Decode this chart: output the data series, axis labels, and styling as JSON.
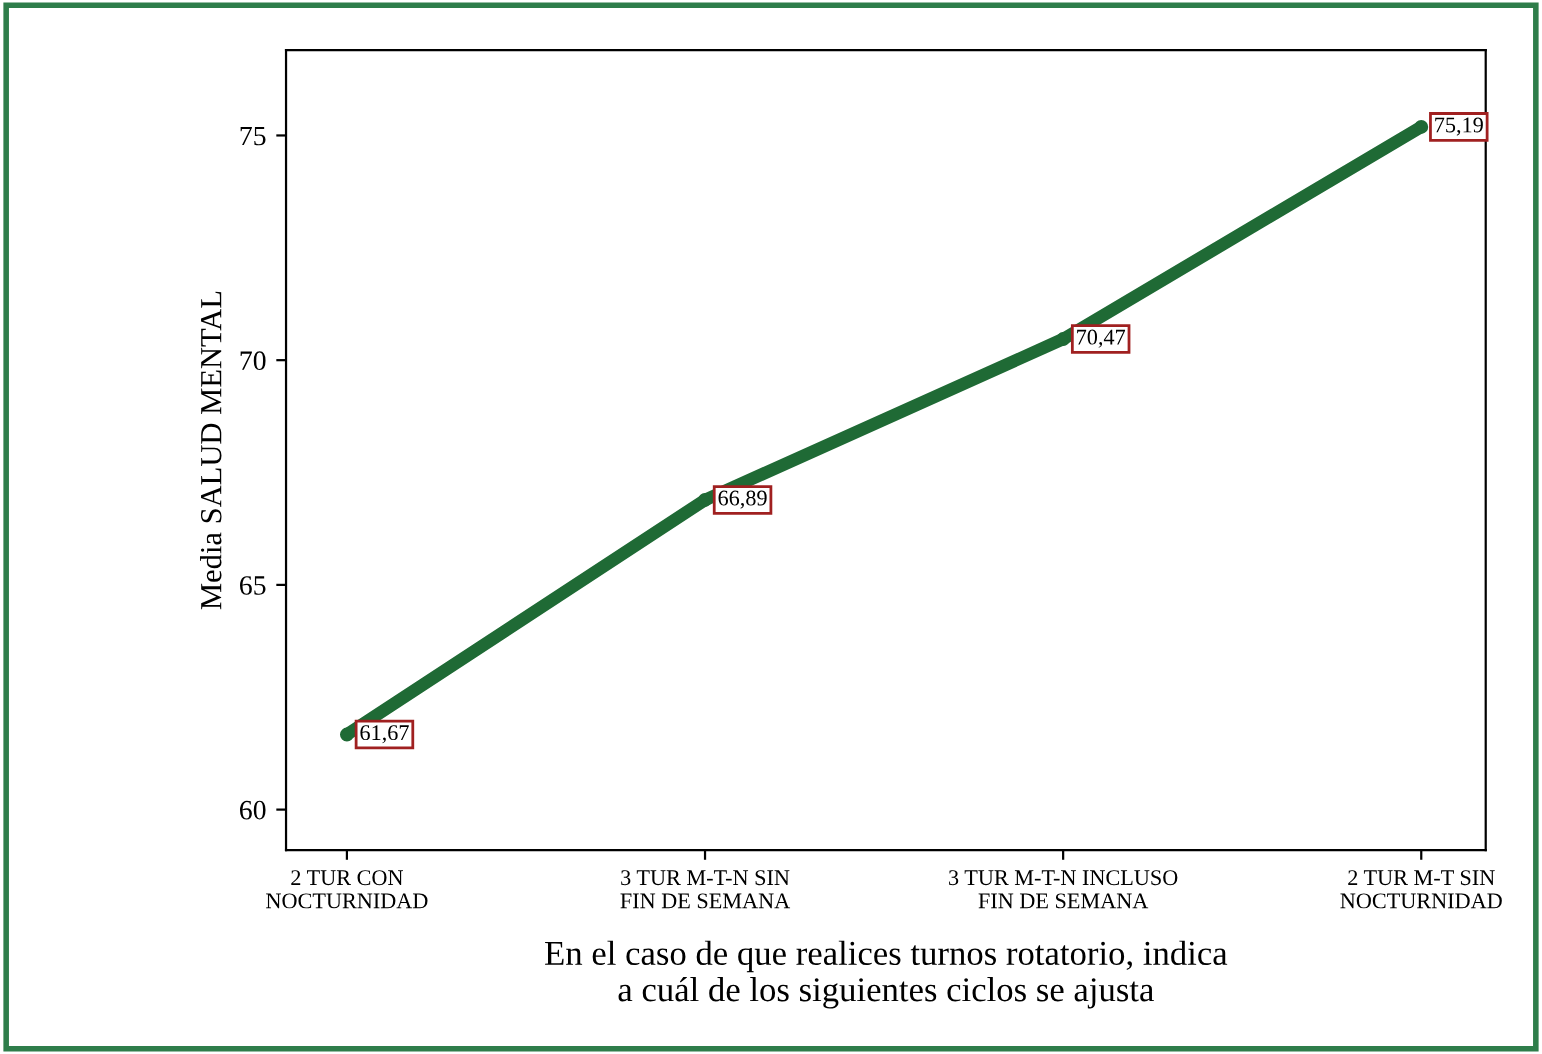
{
  "chart_data": {
    "type": "line",
    "xlabel": "En el caso de que realices turnos rotatorio, indica\na cuál de los siguientes ciclos se ajusta",
    "ylabel": "Media SALUD MENTAL",
    "categories": [
      "2 TUR CON\nNOCTURNIDAD",
      "3 TUR M-T-N SIN\nFIN DE SEMANA",
      "3 TUR M-T-N INCLUSO\nFIN DE SEMANA",
      "2 TUR M-T SIN\nNOCTURNIDAD"
    ],
    "series": [
      {
        "color": "#1f6a35",
        "values": [
          61.67,
          66.89,
          70.47,
          75.19
        ],
        "value_labels": [
          "61,67",
          "66,89",
          "70,47",
          "75,19"
        ]
      }
    ],
    "ylim": [
      59.1,
      76.9
    ],
    "yticks": [
      60,
      65,
      70,
      75
    ],
    "marker": "circle",
    "line_style": "solid"
  }
}
